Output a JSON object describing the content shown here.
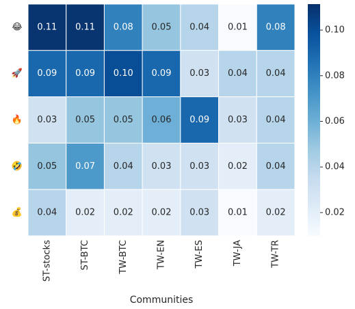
{
  "chart_data": {
    "type": "heatmap",
    "xlabel": "Communities",
    "x_categories": [
      "ST-stocks",
      "ST-BTC",
      "TW-BTC",
      "TW-EN",
      "TW-ES",
      "TW-JA",
      "TW-TR"
    ],
    "y_categories": [
      "😂",
      "🚀",
      "🔥",
      "🤣",
      "💰"
    ],
    "values": [
      [
        0.11,
        0.11,
        0.08,
        0.05,
        0.04,
        0.01,
        0.08
      ],
      [
        0.09,
        0.09,
        0.1,
        0.09,
        0.03,
        0.04,
        0.04
      ],
      [
        0.03,
        0.05,
        0.05,
        0.06,
        0.09,
        0.03,
        0.04
      ],
      [
        0.05,
        0.07,
        0.04,
        0.03,
        0.03,
        0.02,
        0.04
      ],
      [
        0.04,
        0.02,
        0.02,
        0.02,
        0.03,
        0.01,
        0.02
      ]
    ],
    "value_labels": [
      [
        "0.11",
        "0.11",
        "0.08",
        "0.05",
        "0.04",
        "0.01",
        "0.08"
      ],
      [
        "0.09",
        "0.09",
        "0.10",
        "0.09",
        "0.03",
        "0.04",
        "0.04"
      ],
      [
        "0.03",
        "0.05",
        "0.05",
        "0.06",
        "0.09",
        "0.03",
        "0.04"
      ],
      [
        "0.05",
        "0.07",
        "0.04",
        "0.03",
        "0.03",
        "0.02",
        "0.04"
      ],
      [
        "0.04",
        "0.02",
        "0.02",
        "0.02",
        "0.03",
        "0.01",
        "0.02"
      ]
    ],
    "colormap": "Blues",
    "clim": [
      0.0098,
      0.1114
    ],
    "cticks": [
      0.02,
      0.04,
      0.06,
      0.08,
      {
        "value": 0.1,
        "label": "0.10"
      }
    ]
  }
}
